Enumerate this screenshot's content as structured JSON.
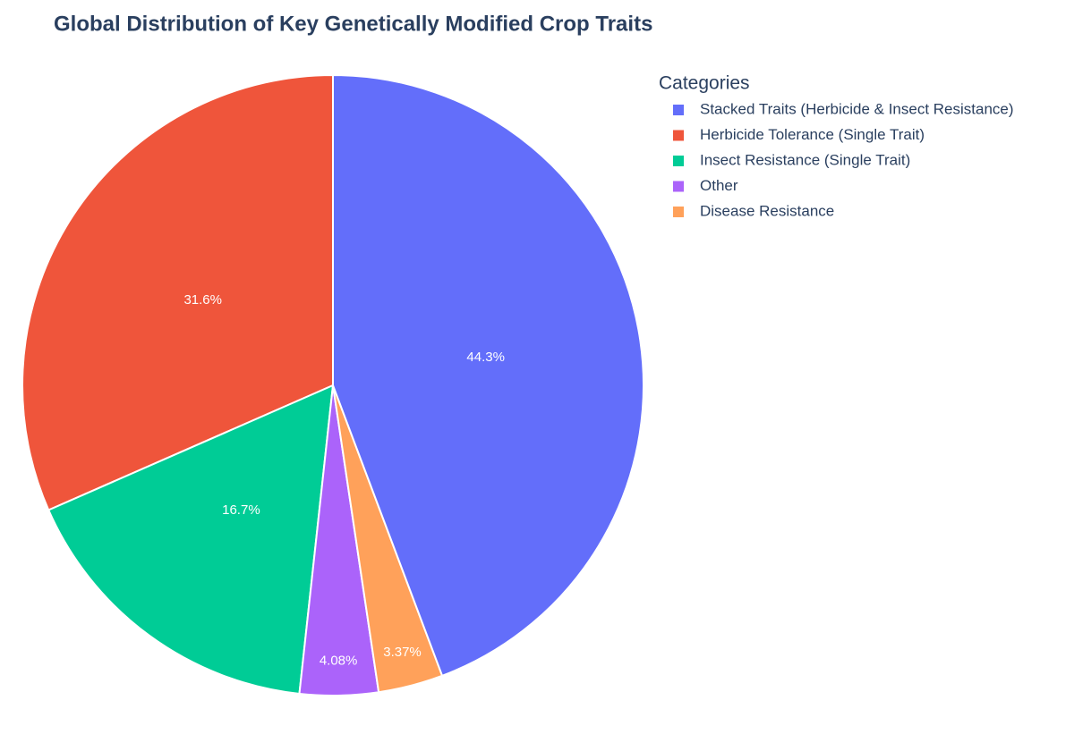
{
  "chart_data": {
    "type": "pie",
    "title": "Global Distribution of Key Genetically Modified Crop Traits",
    "legend_title": "Categories",
    "categories": [
      "Stacked Traits (Herbicide & Insect Resistance)",
      "Herbicide Tolerance (Single Trait)",
      "Insect Resistance (Single Trait)",
      "Other",
      "Disease Resistance"
    ],
    "values": [
      44.3,
      31.6,
      16.7,
      4.08,
      3.37
    ],
    "value_labels": [
      "44.3%",
      "31.6%",
      "16.7%",
      "4.08%",
      "3.37%"
    ],
    "colors": [
      "#636efa",
      "#ef553b",
      "#00cc96",
      "#ab63fa",
      "#ffa15a"
    ],
    "legend": "top-right"
  }
}
